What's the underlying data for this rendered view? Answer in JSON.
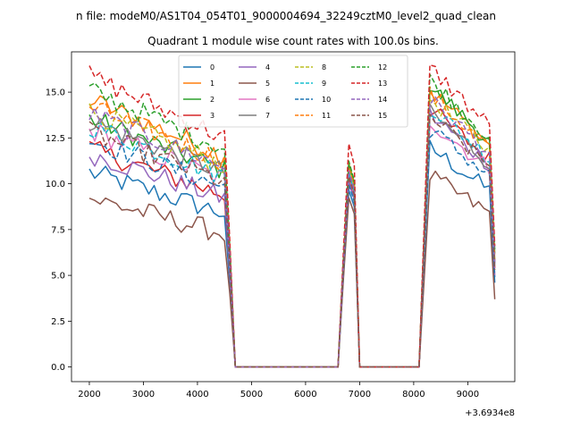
{
  "chart_data": {
    "type": "line",
    "suptitle": "n file: modeM0/AS1T04_054T01_9000004694_32249cztM0_level2_quad_clean",
    "title": "Quadrant 1 module wise count rates with 100.0s bins.",
    "xlabel": "",
    "ylabel": "",
    "x_offset_label": "+3.6934e8",
    "xlim": [
      1670,
      9870
    ],
    "ylim": [
      -0.8,
      17.2
    ],
    "xticks": [
      2000,
      3000,
      4000,
      5000,
      6000,
      7000,
      8000,
      9000
    ],
    "xtick_labels": [
      "2000",
      "3000",
      "4000",
      "5000",
      "6000",
      "7000",
      "8000",
      "9000"
    ],
    "yticks": [
      0.0,
      2.5,
      5.0,
      7.5,
      10.0,
      12.5,
      15.0
    ],
    "ytick_labels": [
      "0.0",
      "2.5",
      "5.0",
      "7.5",
      "10.0",
      "12.5",
      "15.0"
    ],
    "legend_position": "upper center",
    "segments": [
      {
        "start": 2000,
        "end": 4600,
        "step": 100
      },
      {
        "start": 4700,
        "end": 6600,
        "step": 100
      },
      {
        "start": 6600,
        "end": 7000,
        "step": 100
      },
      {
        "start": 7000,
        "end": 8100,
        "step": 100
      },
      {
        "start": 8100,
        "end": 9500,
        "step": 100
      }
    ],
    "series": [
      {
        "name": "0",
        "color": "#1f77b4",
        "dashed": false,
        "level": 8.3,
        "burst1": 9.2,
        "burst2": 10.7,
        "final": 4.6
      },
      {
        "name": "1",
        "color": "#ff7f0e",
        "dashed": false,
        "level": 11.4,
        "burst1": 10.6,
        "burst2": 13.5,
        "final": 5.8
      },
      {
        "name": "2",
        "color": "#2ca02c",
        "dashed": false,
        "level": 10.6,
        "burst1": 10.5,
        "burst2": 13.7,
        "final": 6.2
      },
      {
        "name": "3",
        "color": "#d62728",
        "dashed": false,
        "level": 9.3,
        "burst1": 9.8,
        "burst2": 12.6,
        "final": 5.4
      },
      {
        "name": "4",
        "color": "#9467bd",
        "dashed": false,
        "level": 9.1,
        "burst1": 9.6,
        "burst2": 12.3,
        "final": 5.0
      },
      {
        "name": "5",
        "color": "#8c564b",
        "dashed": false,
        "level": 7.2,
        "burst1": 8.8,
        "burst2": 9.3,
        "final": 3.7
      },
      {
        "name": "6",
        "color": "#e377c2",
        "dashed": false,
        "level": 10.1,
        "burst1": 9.9,
        "burst2": 12.0,
        "final": 5.6
      },
      {
        "name": "7",
        "color": "#7f7f7f",
        "dashed": false,
        "level": 10.5,
        "burst1": 10.0,
        "burst2": 12.4,
        "final": 5.7
      },
      {
        "name": "8",
        "color": "#bcbd22",
        "dashed": true,
        "level": 10.9,
        "burst1": 10.3,
        "burst2": 13.1,
        "final": 5.8
      },
      {
        "name": "9",
        "color": "#17becf",
        "dashed": true,
        "level": 10.3,
        "burst1": 10.1,
        "burst2": 12.7,
        "final": 5.5
      },
      {
        "name": "10",
        "color": "#1f77b4",
        "dashed": true,
        "level": 9.7,
        "burst1": 9.5,
        "burst2": 11.6,
        "final": 4.9
      },
      {
        "name": "11",
        "color": "#ff7f0e",
        "dashed": true,
        "level": 11.1,
        "burst1": 10.4,
        "burst2": 13.3,
        "final": 6.0
      },
      {
        "name": "12",
        "color": "#2ca02c",
        "dashed": true,
        "level": 11.8,
        "burst1": 10.7,
        "burst2": 14.0,
        "final": 6.4
      },
      {
        "name": "13",
        "color": "#d62728",
        "dashed": true,
        "level": 12.4,
        "burst1": 11.6,
        "burst2": 14.6,
        "final": 6.6
      },
      {
        "name": "14",
        "color": "#9467bd",
        "dashed": true,
        "level": 10.8,
        "burst1": 10.2,
        "burst2": 13.0,
        "final": 5.7
      },
      {
        "name": "15",
        "color": "#8c564b",
        "dashed": true,
        "level": 10.0,
        "burst1": 9.9,
        "burst2": 12.2,
        "final": 5.3
      }
    ]
  }
}
